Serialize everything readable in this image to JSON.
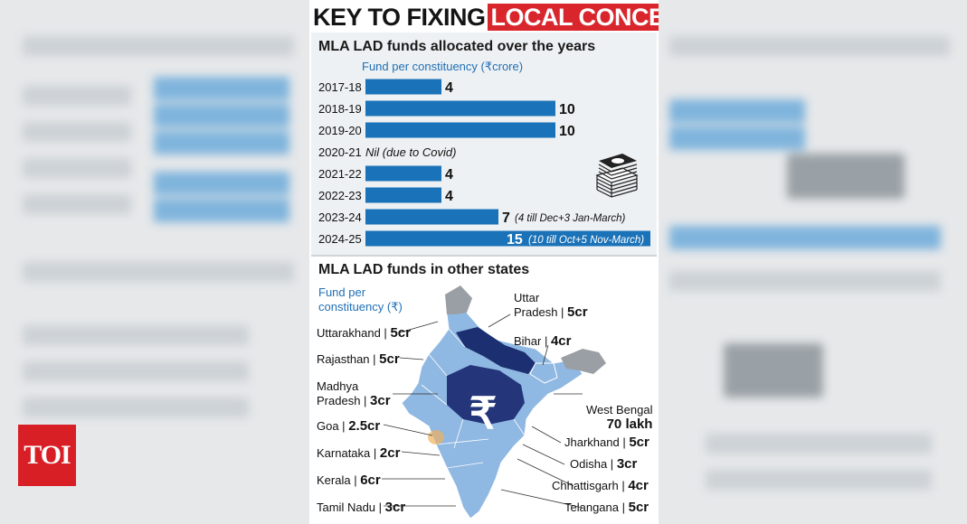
{
  "headline": {
    "part1": "KEY TO FIXING",
    "part2": "LOCAL CONCERNS"
  },
  "section1": {
    "title": "MLA LAD funds allocated over the years",
    "subtitle": "Fund per constituency (₹crore)"
  },
  "chart_data": {
    "type": "bar",
    "orientation": "horizontal",
    "title": "MLA LAD funds allocated over the years",
    "subtitle": "Fund per constituency (₹crore)",
    "categories": [
      "2017-18",
      "2018-19",
      "2019-20",
      "2020-21",
      "2021-22",
      "2022-23",
      "2023-24",
      "2024-25"
    ],
    "values": [
      4,
      10,
      10,
      0,
      4,
      4,
      7,
      15
    ],
    "value_labels": [
      "4",
      "10",
      "10",
      "",
      "4",
      "4",
      "7",
      "15"
    ],
    "annotations": [
      "",
      "",
      "",
      "Nil (due to Covid)",
      "",
      "",
      "(4 till Dec+3 Jan-March)",
      "(10 till Oct+5 Nov-March)"
    ],
    "bar_color": "#1a72b8",
    "grid": false,
    "legend": "none"
  },
  "section2": {
    "title": "MLA LAD funds in other states",
    "subtitle_line1": "Fund per",
    "subtitle_line2": "constituency (₹)",
    "rupee_symbol": "₹",
    "states": [
      {
        "name": "Uttarakhand |",
        "value": "5cr"
      },
      {
        "name": "Rajasthan |",
        "value": "5cr"
      },
      {
        "name": "Madhya",
        "name2": "Pradesh |",
        "value": "3cr"
      },
      {
        "name": "Goa |",
        "value": "2.5cr"
      },
      {
        "name": "Karnataka |",
        "value": "2cr"
      },
      {
        "name": "Kerala |",
        "value": "6cr"
      },
      {
        "name": "Tamil Nadu |",
        "value": "3cr"
      },
      {
        "name": "Uttar",
        "name2": "Pradesh |",
        "value": "5cr"
      },
      {
        "name": "Bihar |",
        "value": "4cr"
      },
      {
        "name": "West Bengal",
        "value": "70 lakh"
      },
      {
        "name": "Jharkhand |",
        "value": "5cr"
      },
      {
        "name": "Odisha |",
        "value": "3cr"
      },
      {
        "name": "Chhattisgarh |",
        "value": "4cr"
      },
      {
        "name": "Telangana |",
        "value": "5cr"
      }
    ]
  },
  "logo": {
    "text": "TOI"
  },
  "colors": {
    "accent_red": "#d8262c",
    "bar_blue": "#1a72b8",
    "map_light": "#8fb8e2",
    "map_dark": "#1c2f70",
    "map_grey": "#9a9fa5"
  },
  "icons": [
    "money-stack-icon",
    "rupee-icon",
    "india-map"
  ]
}
